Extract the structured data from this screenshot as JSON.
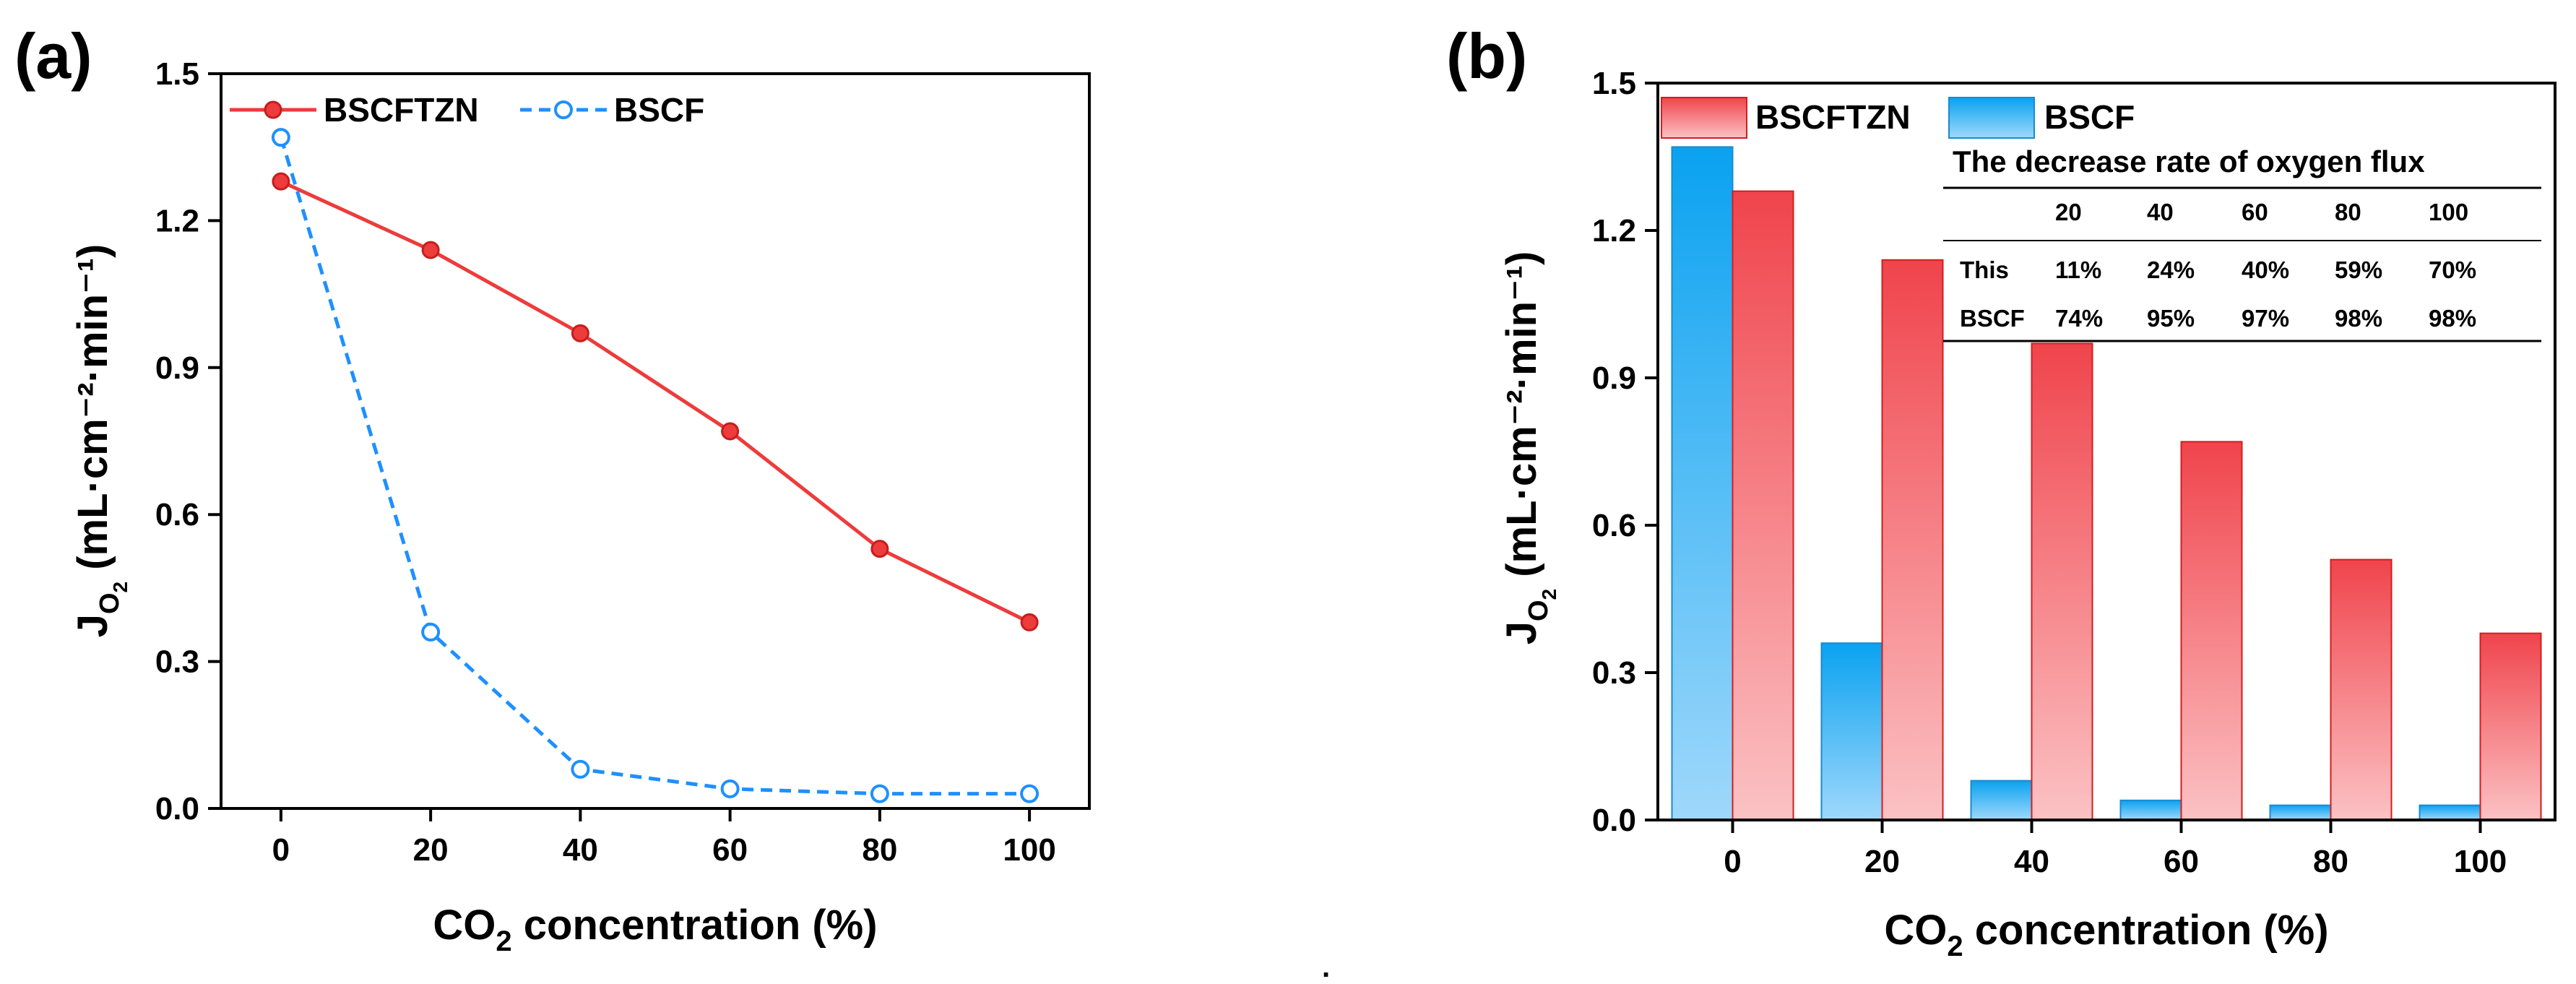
{
  "chart_data": [
    {
      "panel_label": "(a)",
      "type": "line",
      "x": [
        0,
        20,
        40,
        60,
        80,
        100
      ],
      "x_tick_labels": [
        "0",
        "20",
        "40",
        "60",
        "80",
        "100"
      ],
      "y_tick_labels": [
        "0.0",
        "0.3",
        "0.6",
        "0.9",
        "1.2",
        "1.5"
      ],
      "ylim": [
        0,
        1.5
      ],
      "xlim": [
        -8,
        108
      ],
      "xlabel": {
        "main": "CO",
        "sub": "2",
        "rest": " concentration (%)"
      },
      "ylabel": {
        "main": "J",
        "sub": "O",
        "subsub": "2",
        "rest": " (mL·cm⁻²·min⁻¹)"
      },
      "series": [
        {
          "name": "BSCFTZN",
          "color": "#ee3b3b",
          "style": "solid",
          "marker": "filled-circle",
          "values": [
            1.28,
            1.14,
            0.97,
            0.77,
            0.53,
            0.38
          ]
        },
        {
          "name": "BSCF",
          "color": "#1e90ff",
          "style": "dashed",
          "marker": "open-circle",
          "values": [
            1.37,
            0.36,
            0.08,
            0.04,
            0.03,
            0.03
          ]
        }
      ],
      "legend_position": "top"
    },
    {
      "panel_label": "(b)",
      "type": "bar",
      "categories": [
        "0",
        "20",
        "40",
        "60",
        "80",
        "100"
      ],
      "y_tick_labels": [
        "0.0",
        "0.3",
        "0.6",
        "0.9",
        "1.2",
        "1.5"
      ],
      "ylim": [
        0,
        1.5
      ],
      "xlabel": {
        "main": "CO",
        "sub": "2",
        "rest": " concentration (%)"
      },
      "ylabel": {
        "main": "J",
        "sub": "O",
        "subsub": "2",
        "rest": " (mL·cm⁻²·min⁻¹)"
      },
      "series": [
        {
          "name": "BSCF",
          "color": "#1ea7f0",
          "values": [
            1.37,
            0.36,
            0.08,
            0.04,
            0.03,
            0.03
          ]
        },
        {
          "name": "BSCFTZN",
          "color": "#f0555a",
          "values": [
            1.28,
            1.14,
            0.97,
            0.77,
            0.53,
            0.38
          ]
        }
      ],
      "legend_order": [
        "BSCFTZN",
        "BSCF"
      ],
      "inset_table": {
        "title": "The decrease rate of oxygen flux",
        "header": [
          "",
          "20",
          "40",
          "60",
          "80",
          "100"
        ],
        "rows": [
          [
            "This",
            "11%",
            "24%",
            "40%",
            "59%",
            "70%"
          ],
          [
            "BSCF",
            "74%",
            "95%",
            "97%",
            "98%",
            "98%"
          ]
        ]
      }
    }
  ],
  "footer_mark": "."
}
